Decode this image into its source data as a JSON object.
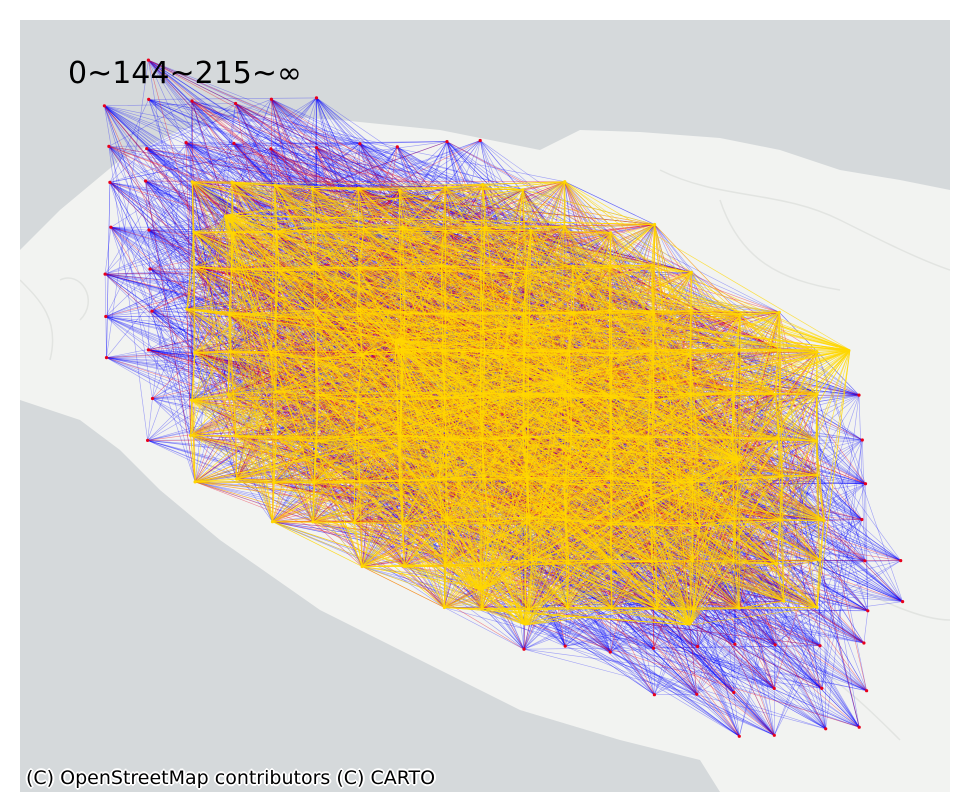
{
  "map": {
    "legend": "0~144~215~∞",
    "attribution": "(C) OpenStreetMap contributors (C) CARTO",
    "basemap": "CARTO light (no labels)",
    "colors": {
      "water": "#d5d9db",
      "land": "#f2f3f1",
      "edge_low": "#0000ff",
      "edge_mid": "#e8001c",
      "edge_high": "#ffd700"
    },
    "classes": [
      {
        "range": "0~144",
        "color": "#0000ff"
      },
      {
        "range": "144~215",
        "color": "#e8001c"
      },
      {
        "range": "215~∞",
        "color": "#ffd700"
      }
    ]
  }
}
